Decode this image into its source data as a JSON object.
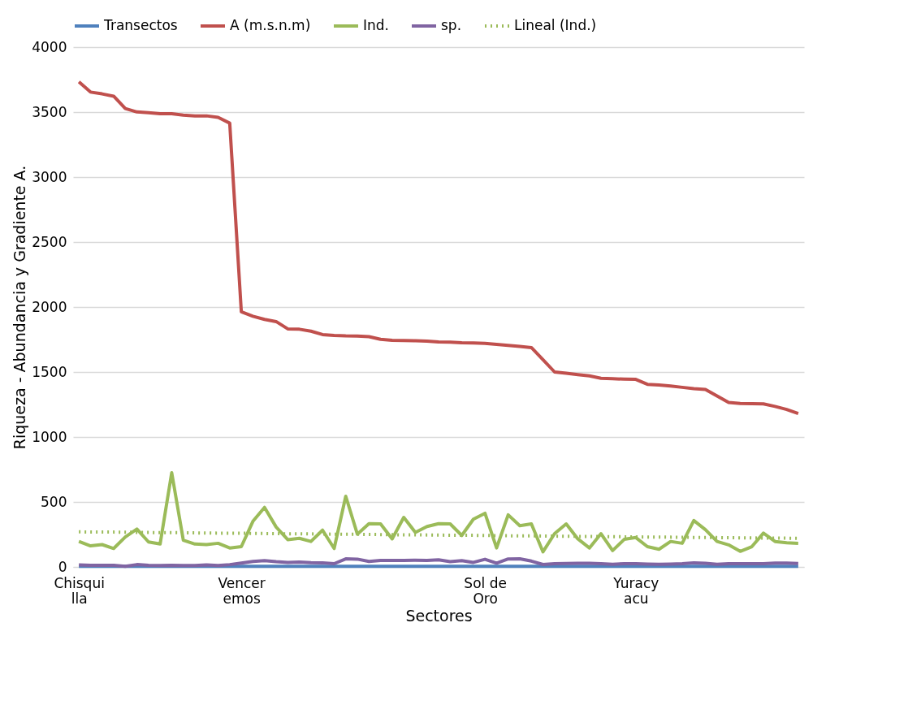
{
  "chart_data": {
    "type": "line",
    "xlabel": "Sectores",
    "ylabel": "Riqueza - Abundancia  y Gradiente A.",
    "categories": [
      "Chisqui\nlla",
      null,
      null,
      null,
      null,
      null,
      null,
      null,
      null,
      null,
      null,
      null,
      null,
      null,
      "Vencer\nemos",
      null,
      null,
      null,
      null,
      null,
      null,
      null,
      null,
      null,
      null,
      null,
      null,
      null,
      null,
      null,
      null,
      null,
      null,
      null,
      null,
      "Sol de\nOro",
      null,
      null,
      null,
      null,
      null,
      null,
      null,
      null,
      null,
      null,
      null,
      null,
      "Yuracy\nacu",
      null,
      null,
      null,
      null,
      null,
      null,
      null,
      null,
      null,
      null,
      null,
      null,
      null,
      null
    ],
    "ylim": [
      0,
      4000
    ],
    "yticks": [
      0,
      500,
      1000,
      1500,
      2000,
      2500,
      3000,
      3500,
      4000
    ],
    "grid": "y",
    "legend": "top",
    "marker": "none",
    "series": [
      {
        "name": "Transectos",
        "color": "#4f81bd",
        "values": [
          5,
          5,
          5,
          5,
          5,
          5,
          5,
          5,
          5,
          5,
          5,
          5,
          5,
          5,
          5,
          5,
          5,
          5,
          5,
          5,
          5,
          5,
          5,
          5,
          5,
          5,
          5,
          5,
          5,
          5,
          5,
          5,
          5,
          5,
          5,
          5,
          5,
          5,
          5,
          5,
          5,
          5,
          5,
          5,
          5,
          5,
          5,
          5,
          5,
          5,
          5,
          5,
          5,
          5,
          5,
          5,
          5,
          5,
          5,
          5,
          5,
          5,
          5
        ]
      },
      {
        "name": "A (m.s.n.m)",
        "color": "#c0504d",
        "values": [
          3733,
          3654,
          3640,
          3622,
          3527,
          3501,
          3495,
          3487,
          3487,
          3477,
          3471,
          3471,
          3459,
          3415,
          1963,
          1929,
          1905,
          1888,
          1832,
          1829,
          1814,
          1788,
          1782,
          1778,
          1776,
          1772,
          1752,
          1744,
          1742,
          1740,
          1738,
          1731,
          1729,
          1725,
          1723,
          1721,
          1713,
          1705,
          1697,
          1688,
          1595,
          1500,
          1490,
          1480,
          1470,
          1452,
          1448,
          1445,
          1443,
          1405,
          1400,
          1392,
          1382,
          1372,
          1366,
          1315,
          1265,
          1258,
          1256,
          1255,
          1235,
          1212,
          1180
        ]
      },
      {
        "name": "Ind.",
        "color": "#9bbb59",
        "values": [
          196,
          162,
          172,
          142,
          230,
          291,
          192,
          176,
          725,
          206,
          176,
          172,
          182,
          146,
          156,
          351,
          458,
          307,
          210,
          220,
          196,
          283,
          142,
          544,
          252,
          333,
          331,
          216,
          381,
          266,
          311,
          333,
          331,
          242,
          367,
          413,
          146,
          401,
          317,
          331,
          116,
          256,
          331,
          216,
          146,
          256,
          126,
          212,
          226,
          156,
          136,
          196,
          182,
          357,
          287,
          196,
          170,
          120,
          156,
          260,
          196,
          186,
          182
        ]
      },
      {
        "name": "sp.",
        "color": "#8064a2",
        "values": [
          15,
          13,
          12,
          13,
          5,
          18,
          12,
          11,
          12,
          11,
          11,
          15,
          11,
          18,
          30,
          42,
          48,
          40,
          35,
          38,
          33,
          32,
          25,
          62,
          60,
          42,
          50,
          50,
          50,
          52,
          50,
          55,
          41,
          49,
          35,
          59,
          29,
          61,
          63,
          45,
          19,
          25,
          27,
          28,
          28,
          25,
          20,
          25,
          25,
          22,
          20,
          22,
          25,
          32,
          28,
          20,
          25,
          25,
          25,
          25,
          30,
          30,
          27
        ]
      },
      {
        "name": "Lineal (Ind.)",
        "color": "#9bbb59",
        "type": "line",
        "line_style": "dotted",
        "values": [
          270,
          269,
          268,
          268,
          267,
          266,
          265,
          264,
          264,
          263,
          262,
          261,
          260,
          260,
          259,
          258,
          257,
          256,
          255,
          255,
          254,
          253,
          252,
          251,
          251,
          250,
          249,
          248,
          247,
          247,
          246,
          245,
          244,
          243,
          243,
          242,
          241,
          240,
          239,
          239,
          238,
          237,
          236,
          235,
          235,
          234,
          233,
          232,
          231,
          230,
          230,
          229,
          228,
          227,
          226,
          226,
          225,
          224,
          223,
          222,
          222,
          221,
          220
        ]
      }
    ]
  }
}
